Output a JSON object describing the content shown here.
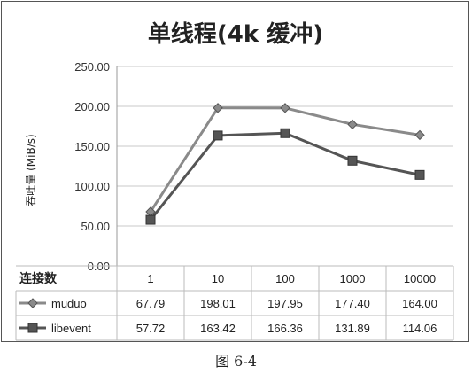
{
  "figure": {
    "caption": "图 6-4"
  },
  "chart_data": {
    "type": "line",
    "title": "单线程(4k 缓冲)",
    "xlabel": "连接数",
    "ylabel": "吞吐量 (MiB/s)",
    "categories": [
      "1",
      "10",
      "100",
      "1000",
      "10000"
    ],
    "ylim": [
      0,
      250
    ],
    "yticks": [
      "0.00",
      "50.00",
      "100.00",
      "150.00",
      "200.00",
      "250.00"
    ],
    "grid": true,
    "legend": "data-table",
    "series": [
      {
        "name": "muduo",
        "values": [
          67.79,
          198.01,
          197.95,
          177.4,
          164.0
        ],
        "labels": [
          "67.79",
          "198.01",
          "197.95",
          "177.40",
          "164.00"
        ],
        "marker": "diamond",
        "color": "#8a8a8a"
      },
      {
        "name": "libevent",
        "values": [
          57.72,
          163.42,
          166.36,
          131.89,
          114.06
        ],
        "labels": [
          "57.72",
          "163.42",
          "166.36",
          "131.89",
          "114.06"
        ],
        "marker": "square",
        "color": "#555555"
      }
    ]
  }
}
